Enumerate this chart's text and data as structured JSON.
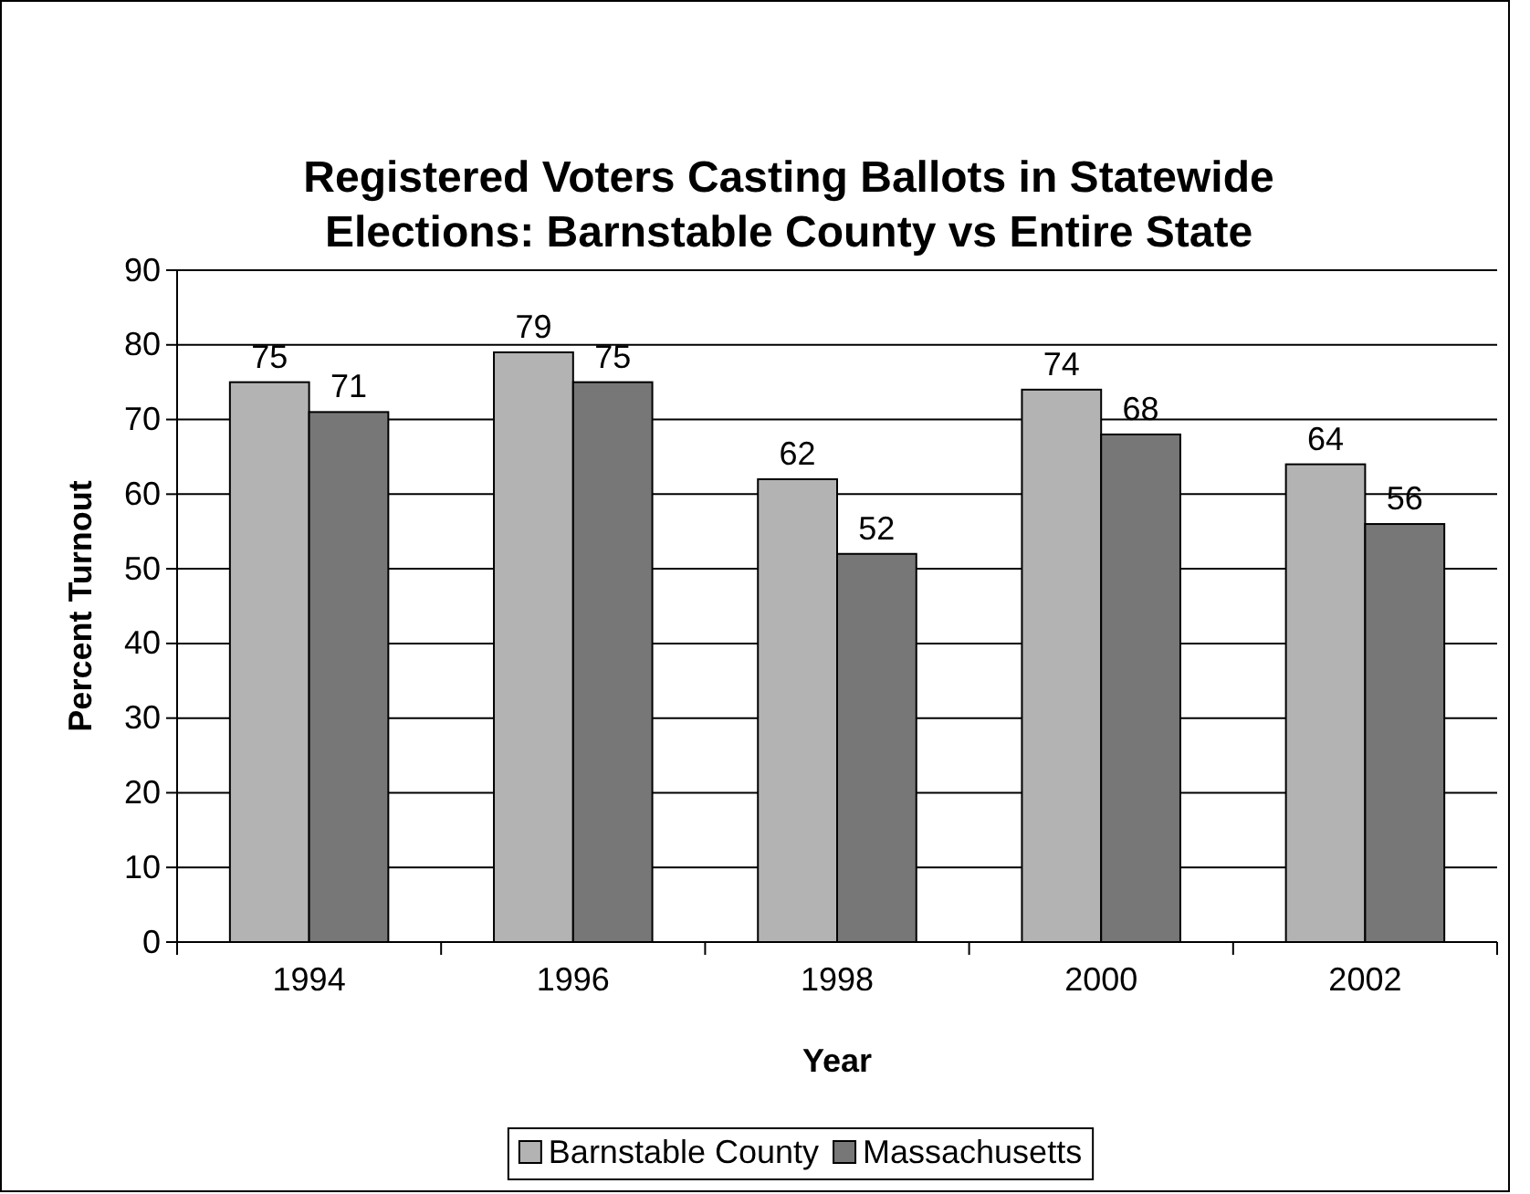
{
  "chart_data": {
    "type": "bar",
    "title": "Registered Voters Casting Ballots in Statewide Elections: Barnstable County vs Entire State",
    "xlabel": "Year",
    "ylabel": "Percent Turnout",
    "categories": [
      "1994",
      "1996",
      "1998",
      "2000",
      "2002"
    ],
    "series": [
      {
        "name": "Barnstable County",
        "color": "#b3b3b3",
        "values": [
          75,
          79,
          62,
          74,
          64
        ]
      },
      {
        "name": "Massachusetts",
        "color": "#777777",
        "values": [
          71,
          75,
          52,
          68,
          56
        ]
      }
    ],
    "ylim": [
      0,
      90
    ],
    "yticks": [
      0,
      10,
      20,
      30,
      40,
      50,
      60,
      70,
      80,
      90
    ],
    "grid": "y",
    "legend": "bottom",
    "data_labels": true
  }
}
